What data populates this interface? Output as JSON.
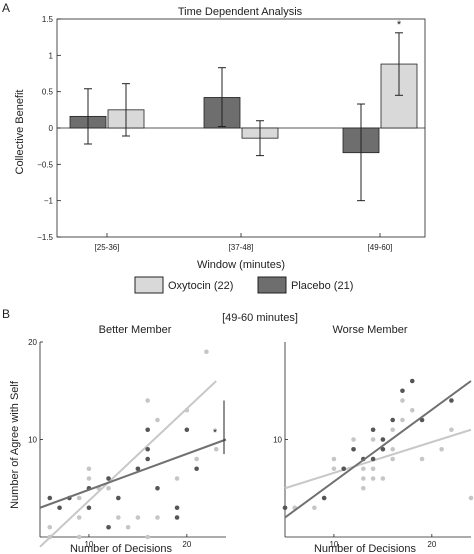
{
  "panel_labels": {
    "a": "A",
    "b": "B"
  },
  "legend": {
    "oxytocin": "Oxytocin (22)",
    "placebo": "Placebo (21)"
  },
  "colors": {
    "oxytocin": "#d9d9d9",
    "placebo": "#6e6e6e",
    "oxytocin_dot": "#c6c6c6",
    "placebo_dot": "#565656"
  },
  "chart_data": [
    {
      "type": "bar",
      "title": "Time Dependent Analysis",
      "xlabel": "Window (minutes)",
      "ylabel": "Collective Benefit",
      "categories": [
        "[25-36]",
        "[37-48]",
        "[49-60]"
      ],
      "ylim": [
        -1.5,
        1.5
      ],
      "yticks": [
        -1.5,
        -1,
        -0.5,
        0,
        0.5,
        1,
        1.5
      ],
      "ytick_labels": [
        "−1.5",
        "−1",
        "−0.5",
        "0",
        "0.5",
        "1",
        "1.5"
      ],
      "series": [
        {
          "name": "Placebo (21)",
          "values": [
            0.16,
            0.42,
            -0.34
          ],
          "err_low": [
            -0.22,
            0.02,
            -1.0
          ],
          "err_high": [
            0.54,
            0.83,
            0.33
          ]
        },
        {
          "name": "Oxytocin (22)",
          "values": [
            0.25,
            -0.14,
            0.88
          ],
          "err_low": [
            -0.11,
            -0.38,
            0.45
          ],
          "err_high": [
            0.61,
            0.1,
            1.31
          ]
        }
      ],
      "significance": [
        {
          "category": "[49-60]",
          "series": "Oxytocin (22)",
          "label": "*"
        }
      ],
      "grid": false
    },
    {
      "type": "scatter",
      "supertitle": "[49-60 minutes]",
      "title": "Better Member",
      "xlabel": "Number of Decisions",
      "ylabel": "Number of Agree with Self",
      "xlim": [
        5,
        24
      ],
      "ylim": [
        0,
        20
      ],
      "xticks": [
        10,
        20
      ],
      "yticks": [
        10,
        20
      ],
      "series": [
        {
          "name": "Oxytocin (22)",
          "points": [
            [
              6,
              0
            ],
            [
              6,
              1
            ],
            [
              9,
              0
            ],
            [
              9,
              2
            ],
            [
              9,
              4
            ],
            [
              10,
              7
            ],
            [
              10,
              6
            ],
            [
              11,
              5
            ],
            [
              12,
              1
            ],
            [
              12,
              5
            ],
            [
              12,
              6
            ],
            [
              13,
              2
            ],
            [
              13,
              4
            ],
            [
              14,
              1
            ],
            [
              15,
              2
            ],
            [
              15,
              7
            ],
            [
              16,
              0
            ],
            [
              16,
              14
            ],
            [
              17,
              12
            ],
            [
              17,
              2
            ],
            [
              19,
              6
            ],
            [
              20,
              13
            ],
            [
              21,
              8
            ],
            [
              22,
              19
            ],
            [
              23,
              9
            ]
          ],
          "fit": [
            [
              5,
              -1
            ],
            [
              23,
              16
            ]
          ]
        },
        {
          "name": "Placebo (21)",
          "points": [
            [
              6,
              4
            ],
            [
              7,
              3
            ],
            [
              8,
              4
            ],
            [
              10,
              3
            ],
            [
              10,
              5
            ],
            [
              12,
              1
            ],
            [
              12,
              6
            ],
            [
              13,
              4
            ],
            [
              15,
              7
            ],
            [
              16,
              9
            ],
            [
              16,
              11
            ],
            [
              16,
              8
            ],
            [
              17,
              5
            ],
            [
              19,
              2
            ],
            [
              19,
              3
            ],
            [
              20,
              11
            ],
            [
              21,
              7
            ]
          ],
          "fit": [
            [
              5,
              3
            ],
            [
              24,
              10
            ]
          ]
        }
      ],
      "annotation": {
        "label": "*"
      }
    },
    {
      "type": "scatter",
      "title": "Worse Member",
      "xlabel": "Number of Decisions",
      "ylabel": "",
      "xlim": [
        5,
        24
      ],
      "ylim": [
        0,
        20
      ],
      "xticks": [
        10,
        20
      ],
      "yticks": [
        10
      ],
      "series": [
        {
          "name": "Oxytocin (22)",
          "points": [
            [
              5,
              3
            ],
            [
              6,
              3
            ],
            [
              8,
              3
            ],
            [
              9,
              4
            ],
            [
              10,
              7
            ],
            [
              10,
              8
            ],
            [
              11,
              7
            ],
            [
              12,
              9
            ],
            [
              12,
              10
            ],
            [
              13,
              5
            ],
            [
              13,
              6
            ],
            [
              13,
              7
            ],
            [
              14,
              6
            ],
            [
              14,
              7
            ],
            [
              14,
              10
            ],
            [
              15,
              6
            ],
            [
              15,
              10
            ],
            [
              16,
              8
            ],
            [
              16,
              9
            ],
            [
              16,
              11
            ],
            [
              17,
              12
            ],
            [
              17,
              14
            ],
            [
              18,
              13
            ],
            [
              19,
              8
            ],
            [
              21,
              9
            ],
            [
              22,
              11
            ],
            [
              24,
              4
            ]
          ],
          "fit": [
            [
              5,
              5
            ],
            [
              24,
              11
            ]
          ]
        },
        {
          "name": "Placebo (21)",
          "points": [
            [
              5,
              3
            ],
            [
              9,
              4
            ],
            [
              11,
              7
            ],
            [
              12,
              9
            ],
            [
              13,
              8
            ],
            [
              14,
              8
            ],
            [
              14,
              11
            ],
            [
              15,
              9
            ],
            [
              15,
              10
            ],
            [
              16,
              12
            ],
            [
              17,
              15
            ],
            [
              18,
              16
            ],
            [
              19,
              12
            ],
            [
              22,
              14
            ]
          ],
          "fit": [
            [
              5,
              2
            ],
            [
              24,
              16
            ]
          ]
        }
      ]
    }
  ]
}
